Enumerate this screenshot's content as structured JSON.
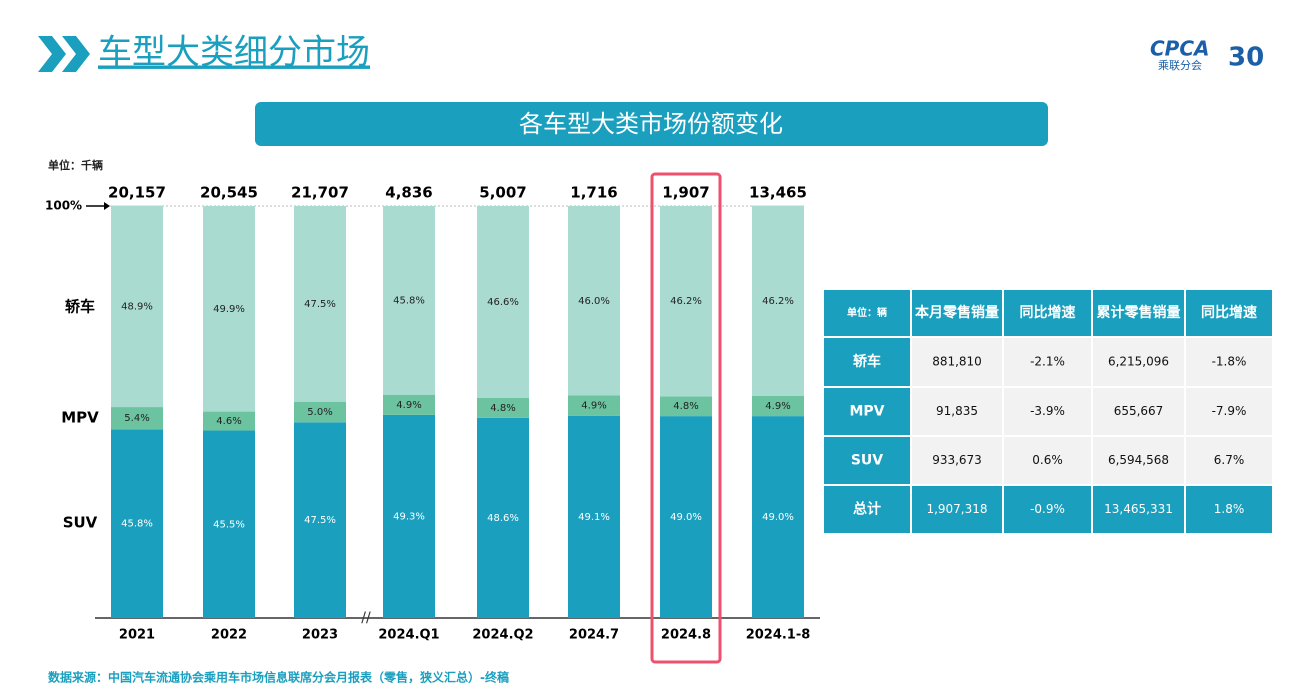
{
  "header": {
    "title": "车型大类细分市场",
    "logo": {
      "text": "CPCA",
      "subtext": "乘联分会",
      "anniversary": "30"
    }
  },
  "chart_data": {
    "type": "stacked_bar",
    "title": "各车型大类市场份额变化",
    "unit": "单位：千辆",
    "categories": [
      "2021",
      "2022",
      "2023",
      "2024.Q1",
      "2024.Q2",
      "2024.7",
      "2024.8",
      "2024.1-8"
    ],
    "totals": {
      "values": [
        20157,
        20545,
        21707,
        4836,
        5007,
        1716,
        1907,
        13465
      ],
      "value_labels": [
        "20,157",
        "20,545",
        "21,707",
        "4,836",
        "5,007",
        "1,716",
        "1,907",
        "13,465"
      ]
    },
    "series": [
      {
        "name": "SUV",
        "color": "#1a9fbf",
        "values": [
          45.8,
          45.5,
          47.5,
          49.3,
          48.6,
          49.1,
          49.0,
          49.0
        ],
        "value_labels": [
          "45.8%",
          "45.5%",
          "47.5%",
          "49.3%",
          "48.6%",
          "49.1%",
          "49.0%",
          "49.0%"
        ]
      },
      {
        "name": "MPV",
        "color": "#6cc3a0",
        "values": [
          5.4,
          4.6,
          5.0,
          4.9,
          4.8,
          4.9,
          4.8,
          4.9
        ],
        "value_labels": [
          "5.4%",
          "4.6%",
          "5.0%",
          "4.9%",
          "4.8%",
          "4.9%",
          "4.8%",
          "4.9%"
        ]
      },
      {
        "name": "轿车",
        "color": "#a9dbd1",
        "values": [
          48.9,
          49.9,
          47.5,
          45.8,
          46.6,
          46.0,
          46.2,
          46.2
        ],
        "value_labels": [
          "48.9%",
          "49.9%",
          "47.5%",
          "45.8%",
          "46.6%",
          "46.0%",
          "46.2%",
          "46.2%"
        ]
      }
    ],
    "ylim": [
      0,
      100
    ],
    "yticks": [
      {
        "value": 100,
        "label": "100%"
      }
    ],
    "highlight": "2024.8"
  },
  "table": {
    "header": [
      "单位：辆",
      "本月零售销量",
      "同比增速",
      "累计零售销量",
      "同比增速"
    ],
    "rows": [
      [
        "轿车",
        "881,810",
        "-2.1%",
        "6,215,096",
        "-1.8%"
      ],
      [
        "MPV",
        "91,835",
        "-3.9%",
        "655,667",
        "-7.9%"
      ],
      [
        "SUV",
        "933,673",
        "0.6%",
        "6,594,568",
        "6.7%"
      ],
      [
        "总计",
        "1,907,318",
        "-0.9%",
        "13,465,331",
        "1.8%"
      ]
    ]
  },
  "footer": {
    "source": "数据来源：中国汽车流通协会乘用车市场信息联席分会月报表（零售，狭义汇总）-终稿"
  }
}
